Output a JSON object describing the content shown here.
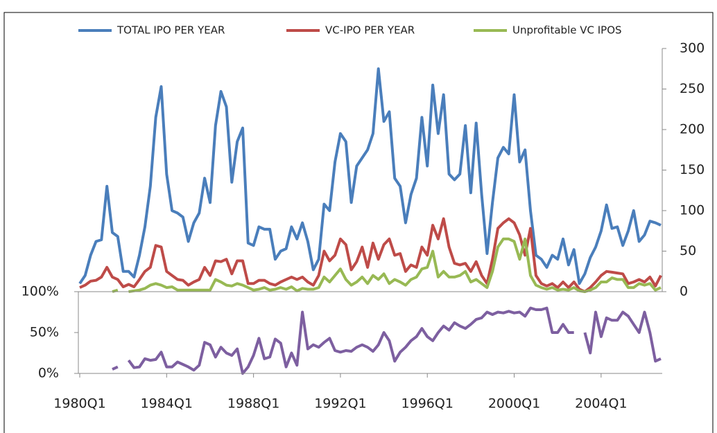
{
  "chart_data": [
    {
      "type": "line",
      "legend": "top",
      "y2lim": [
        0,
        300
      ],
      "y2ticks": [
        0,
        50,
        100,
        150,
        200,
        250,
        300
      ],
      "series": [
        {
          "name": "TOTAL IPO PER YEAR",
          "color": "#4a7ebb",
          "axis": "y2",
          "values": [
            10,
            20,
            45,
            62,
            64,
            130,
            73,
            68,
            25,
            25,
            18,
            45,
            80,
            130,
            215,
            253,
            145,
            100,
            97,
            92,
            62,
            85,
            97,
            140,
            110,
            205,
            247,
            228,
            135,
            185,
            202,
            60,
            57,
            80,
            77,
            77,
            40,
            50,
            53,
            80,
            65,
            85,
            62,
            27,
            40,
            108,
            100,
            160,
            195,
            185,
            110,
            155,
            165,
            175,
            195,
            275,
            210,
            222,
            140,
            130,
            85,
            120,
            140,
            215,
            155,
            255,
            195,
            243,
            145,
            138,
            145,
            205,
            122,
            208,
            120,
            47,
            110,
            165,
            178,
            170,
            243,
            160,
            175,
            100,
            45,
            40,
            30,
            45,
            40,
            65,
            33,
            52,
            10,
            22,
            42,
            55,
            75,
            107,
            78,
            80,
            57,
            75,
            100,
            62,
            70,
            87,
            85,
            82
          ]
        },
        {
          "name": "VC-IPO PER YEAR",
          "color": "#be4b48",
          "axis": "y2",
          "values": [
            5,
            8,
            13,
            14,
            18,
            30,
            18,
            15,
            6,
            9,
            6,
            15,
            25,
            30,
            57,
            55,
            25,
            20,
            15,
            14,
            8,
            12,
            15,
            30,
            20,
            38,
            37,
            40,
            22,
            38,
            38,
            10,
            10,
            14,
            14,
            10,
            8,
            12,
            15,
            18,
            15,
            18,
            12,
            8,
            20,
            50,
            38,
            45,
            65,
            58,
            27,
            37,
            55,
            30,
            60,
            40,
            58,
            65,
            45,
            47,
            25,
            33,
            30,
            55,
            45,
            82,
            65,
            90,
            55,
            35,
            33,
            35,
            25,
            37,
            20,
            10,
            40,
            78,
            85,
            90,
            85,
            70,
            45,
            78,
            20,
            10,
            7,
            10,
            5,
            12,
            5,
            12,
            3,
            0,
            5,
            12,
            20,
            25,
            24,
            23,
            22,
            10,
            12,
            15,
            12,
            18,
            7,
            20
          ]
        },
        {
          "name": "Unprofitable VC IPOS",
          "color": "#98b954",
          "axis": "y2",
          "values": [
            null,
            null,
            null,
            null,
            null,
            null,
            0,
            2,
            null,
            0,
            1,
            2,
            4,
            8,
            10,
            8,
            5,
            6,
            2,
            2,
            2,
            2,
            2,
            2,
            2,
            15,
            12,
            8,
            7,
            10,
            8,
            5,
            2,
            3,
            5,
            2,
            3,
            5,
            3,
            6,
            1,
            4,
            3,
            3,
            5,
            18,
            12,
            20,
            28,
            15,
            8,
            12,
            18,
            10,
            20,
            15,
            22,
            10,
            15,
            12,
            8,
            15,
            18,
            28,
            30,
            50,
            18,
            25,
            18,
            18,
            20,
            25,
            12,
            15,
            10,
            5,
            25,
            55,
            65,
            65,
            62,
            40,
            65,
            20,
            8,
            5,
            3,
            5,
            2,
            3,
            2,
            5,
            1,
            0,
            2,
            5,
            12,
            12,
            17,
            15,
            15,
            5,
            5,
            10,
            8,
            10,
            2,
            5
          ]
        }
      ]
    },
    {
      "type": "line",
      "categories": [
        "1980Q1",
        null,
        null,
        null,
        null,
        null,
        null,
        null,
        null,
        null,
        null,
        null,
        null,
        null,
        null,
        null,
        "1984Q1",
        null,
        null,
        null,
        null,
        null,
        null,
        null,
        null,
        null,
        null,
        null,
        null,
        null,
        null,
        null,
        "1988Q1",
        null,
        null,
        null,
        null,
        null,
        null,
        null,
        null,
        null,
        null,
        null,
        null,
        null,
        null,
        null,
        "1992Q1",
        null,
        null,
        null,
        null,
        null,
        null,
        null,
        null,
        null,
        null,
        null,
        null,
        null,
        null,
        null,
        "1996Q1",
        null,
        null,
        null,
        null,
        null,
        null,
        null,
        null,
        null,
        null,
        null,
        null,
        null,
        null,
        null,
        "2000Q1",
        null,
        null,
        null,
        null,
        null,
        null,
        null,
        null,
        null,
        null,
        null,
        null,
        null,
        null,
        null,
        "2004Q1",
        null,
        null,
        null,
        null,
        null,
        null,
        null,
        null,
        null,
        null,
        null
      ],
      "ylim": [
        0,
        100
      ],
      "yticks": [
        {
          "value": 0,
          "label": "0%"
        },
        {
          "value": 50,
          "label": "50%"
        },
        {
          "value": 100,
          "label": "100%"
        }
      ],
      "series": [
        {
          "color": "#7d5fa0",
          "values": [
            null,
            null,
            null,
            null,
            null,
            null,
            5,
            8,
            null,
            16,
            7,
            8,
            18,
            16,
            17,
            26,
            8,
            8,
            14,
            11,
            8,
            4,
            10,
            38,
            35,
            20,
            32,
            25,
            22,
            30,
            0,
            8,
            22,
            43,
            18,
            20,
            42,
            37,
            8,
            25,
            10,
            75,
            30,
            35,
            32,
            38,
            43,
            28,
            26,
            28,
            27,
            32,
            35,
            32,
            27,
            35,
            50,
            40,
            15,
            26,
            32,
            40,
            45,
            55,
            45,
            40,
            50,
            58,
            53,
            62,
            58,
            55,
            60,
            66,
            68,
            75,
            72,
            75,
            74,
            76,
            74,
            75,
            70,
            80,
            78,
            78,
            80,
            50,
            50,
            60,
            50,
            50,
            null,
            50,
            25,
            75,
            45,
            68,
            65,
            65,
            75,
            70,
            60,
            50,
            75,
            50,
            15,
            18
          ]
        }
      ]
    }
  ]
}
